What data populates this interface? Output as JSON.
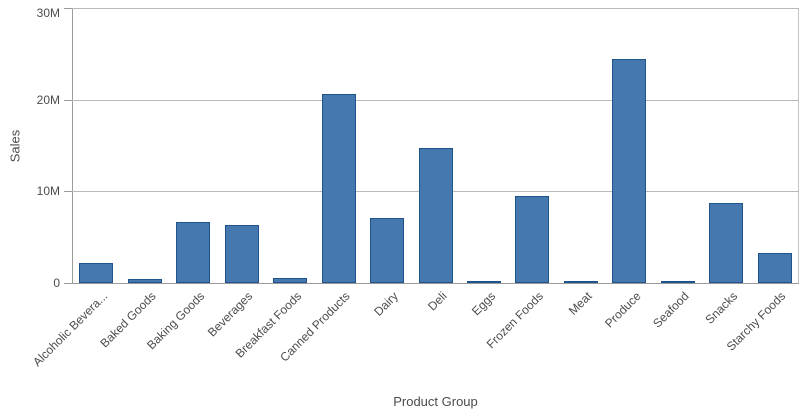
{
  "chart_data": {
    "type": "bar",
    "title": "",
    "xlabel": "Product Group",
    "ylabel": "Sales",
    "categories": [
      "Alcoholic Bevera...",
      "Baked Goods",
      "Baking Goods",
      "Beverages",
      "Breakfast Foods",
      "Canned Products",
      "Dairy",
      "Deli",
      "Eggs",
      "Frozen Foods",
      "Meat",
      "Produce",
      "Seafood",
      "Snacks",
      "Starchy Foods"
    ],
    "values_millions": [
      2.2,
      0.4,
      6.7,
      6.3,
      0.5,
      20.6,
      7.1,
      14.7,
      0.25,
      9.5,
      0.2,
      24.4,
      0.15,
      8.7,
      3.3
    ],
    "value_unit": "M",
    "ylim_millions": [
      0,
      30
    ],
    "yticks": [
      {
        "value": 0,
        "label": "0"
      },
      {
        "value": 10,
        "label": "10M"
      },
      {
        "value": 20,
        "label": "20M"
      },
      {
        "value": 30,
        "label": "30M"
      }
    ],
    "grid": true,
    "legend": false,
    "category_labels_rotated_degrees": -45
  },
  "style": {
    "bar_fill": "#4678b0",
    "bar_border": "#1f538c",
    "grid_color": "#b8b8b8",
    "axis_color": "#9b9b9b",
    "text_color": "#4c4c4c",
    "background": "#ffffff"
  }
}
